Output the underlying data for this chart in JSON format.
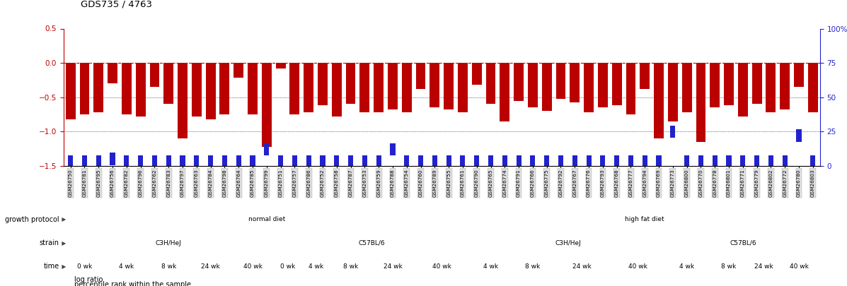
{
  "title": "GDS735 / 4763",
  "samples": [
    "GSM26750",
    "GSM26781",
    "GSM26795",
    "GSM26756",
    "GSM26782",
    "GSM26796",
    "GSM26762",
    "GSM26783",
    "GSM26797",
    "GSM26763",
    "GSM26784",
    "GSM26798",
    "GSM26764",
    "GSM26785",
    "GSM26799",
    "GSM26751",
    "GSM26757",
    "GSM26786",
    "GSM26752",
    "GSM26758",
    "GSM26787",
    "GSM26753",
    "GSM26759",
    "GSM26788",
    "GSM26754",
    "GSM26760",
    "GSM26789",
    "GSM26755",
    "GSM26761",
    "GSM26790",
    "GSM26765",
    "GSM26774",
    "GSM26791",
    "GSM26766",
    "GSM26775",
    "GSM26792",
    "GSM26767",
    "GSM26776",
    "GSM26793",
    "GSM26768",
    "GSM26777",
    "GSM26794",
    "GSM26769",
    "GSM26773",
    "GSM26800",
    "GSM26770",
    "GSM26778",
    "GSM26801",
    "GSM26771",
    "GSM26779",
    "GSM26802",
    "GSM26772",
    "GSM26780",
    "GSM26803"
  ],
  "log_ratio": [
    -0.82,
    -0.75,
    -0.72,
    -0.3,
    -0.75,
    -0.78,
    -0.35,
    -0.6,
    -1.1,
    -0.78,
    -0.82,
    -0.75,
    -0.22,
    -0.75,
    -1.22,
    -0.08,
    -0.75,
    -0.72,
    -0.62,
    -0.78,
    -0.6,
    -0.72,
    -0.72,
    -0.68,
    -0.72,
    -0.38,
    -0.65,
    -0.68,
    -0.72,
    -0.32,
    -0.6,
    -0.85,
    -0.55,
    -0.65,
    -0.7,
    -0.52,
    -0.58,
    -0.72,
    -0.65,
    -0.62,
    -0.75,
    -0.38,
    -1.1,
    -0.85,
    -0.72,
    -1.15,
    -0.65,
    -0.62,
    -0.78,
    -0.6,
    -0.72,
    -0.68,
    -0.35,
    -0.72
  ],
  "percentile": [
    3,
    3,
    3,
    5,
    3,
    3,
    3,
    3,
    3,
    3,
    3,
    3,
    3,
    3,
    12,
    3,
    3,
    3,
    3,
    3,
    3,
    3,
    3,
    12,
    3,
    3,
    3,
    3,
    3,
    3,
    3,
    3,
    3,
    3,
    3,
    3,
    3,
    3,
    3,
    3,
    3,
    3,
    3,
    25,
    3,
    3,
    3,
    3,
    3,
    3,
    3,
    3,
    22,
    3
  ],
  "bar_color": "#BB0000",
  "square_color": "#2222CC",
  "ylim_left": [
    -1.5,
    0.5
  ],
  "ylim_right": [
    0,
    100
  ],
  "yticks_left": [
    0.5,
    0.0,
    -0.5,
    -1.0,
    -1.5
  ],
  "yticks_right": [
    100,
    75,
    50,
    25,
    0
  ],
  "growth_protocol_rows": [
    {
      "label": "normal diet",
      "start": 0,
      "end": 29,
      "color": "#BBEEAA"
    },
    {
      "label": "high fat diet",
      "start": 29,
      "end": 54,
      "color": "#44CC44"
    }
  ],
  "strain_groups": [
    {
      "label": "C3H/HeJ",
      "start": 0,
      "end": 15,
      "color": "#BBBBEE"
    },
    {
      "label": "C57BL/6",
      "start": 15,
      "end": 29,
      "color": "#7777CC"
    },
    {
      "label": "C3H/HeJ",
      "start": 29,
      "end": 43,
      "color": "#BBBBEE"
    },
    {
      "label": "C57BL/6",
      "start": 43,
      "end": 54,
      "color": "#7777CC"
    }
  ],
  "time_groups": [
    {
      "label": "0 wk",
      "start": 0,
      "end": 3,
      "color": "#FFCCCC"
    },
    {
      "label": "4 wk",
      "start": 3,
      "end": 6,
      "color": "#FFBBBB"
    },
    {
      "label": "8 wk",
      "start": 6,
      "end": 9,
      "color": "#FFAAAA"
    },
    {
      "label": "24 wk",
      "start": 9,
      "end": 12,
      "color": "#FF9999"
    },
    {
      "label": "40 wk",
      "start": 12,
      "end": 15,
      "color": "#EE7777"
    },
    {
      "label": "0 wk",
      "start": 15,
      "end": 17,
      "color": "#FFCCCC"
    },
    {
      "label": "4 wk",
      "start": 17,
      "end": 19,
      "color": "#FFBBBB"
    },
    {
      "label": "8 wk",
      "start": 19,
      "end": 22,
      "color": "#FFAAAA"
    },
    {
      "label": "24 wk",
      "start": 22,
      "end": 25,
      "color": "#FF9999"
    },
    {
      "label": "40 wk",
      "start": 25,
      "end": 29,
      "color": "#EE7777"
    },
    {
      "label": "4 wk",
      "start": 29,
      "end": 32,
      "color": "#FFBBBB"
    },
    {
      "label": "8 wk",
      "start": 32,
      "end": 35,
      "color": "#FFAAAA"
    },
    {
      "label": "24 wk",
      "start": 35,
      "end": 39,
      "color": "#FF9999"
    },
    {
      "label": "40 wk",
      "start": 39,
      "end": 43,
      "color": "#EE7777"
    },
    {
      "label": "4 wk",
      "start": 43,
      "end": 46,
      "color": "#FFBBBB"
    },
    {
      "label": "8 wk",
      "start": 46,
      "end": 49,
      "color": "#FFAAAA"
    },
    {
      "label": "24 wk",
      "start": 49,
      "end": 51,
      "color": "#FF9999"
    },
    {
      "label": "40 wk",
      "start": 51,
      "end": 54,
      "color": "#EE7777"
    }
  ],
  "legend_items": [
    {
      "color": "#BB0000",
      "label": "log ratio"
    },
    {
      "color": "#2222CC",
      "label": "percentile rank within the sample"
    }
  ]
}
